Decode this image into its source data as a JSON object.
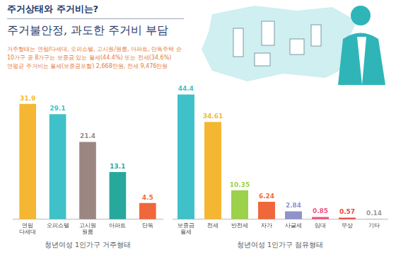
{
  "header": {
    "title": "주거상태와 주거비는?",
    "subtitle": "주거불안정, 과도한 주거비 부담",
    "notes": [
      "거주형태는 연립/다세대, 오피스텔, 고시원/원룸, 아파트, 단독주택 순",
      "10가구 중 8가구는 보증금 있는 월세(44.4%) 또는 전세(34.6%)",
      "연평균 주거비는 월세(보증금포함) 2,668만원, 전세 9,476만원"
    ]
  },
  "chart_data": [
    {
      "type": "bar",
      "title": "청년여성 1인가구 거주형태",
      "categories": [
        "연립 다세대",
        "오피스텔",
        "고시원 원룸",
        "아파트",
        "단독"
      ],
      "values": [
        31.9,
        29.1,
        21.4,
        13.1,
        4.5
      ],
      "colors": [
        "#f5b731",
        "#3fc1c9",
        "#9b8782",
        "#27a89c",
        "#f0673b"
      ],
      "grid": false,
      "data_labels": true,
      "tick_labels": "x"
    },
    {
      "type": "bar",
      "title": "청년여성 1인가구 점유형태",
      "categories": [
        "보증금 월세",
        "전세",
        "반전세",
        "자가",
        "사글세",
        "임대",
        "무상",
        "기타"
      ],
      "values": [
        44.4,
        34.61,
        10.35,
        6.24,
        2.84,
        0.85,
        0.57,
        0.14
      ],
      "colors": [
        "#3fc1c9",
        "#f5b731",
        "#9bd14b",
        "#f0673b",
        "#8f93c9",
        "#f0507e",
        "#e8443a",
        "#9a9a9a"
      ],
      "grid": false,
      "data_labels": true,
      "tick_labels": "x"
    }
  ]
}
